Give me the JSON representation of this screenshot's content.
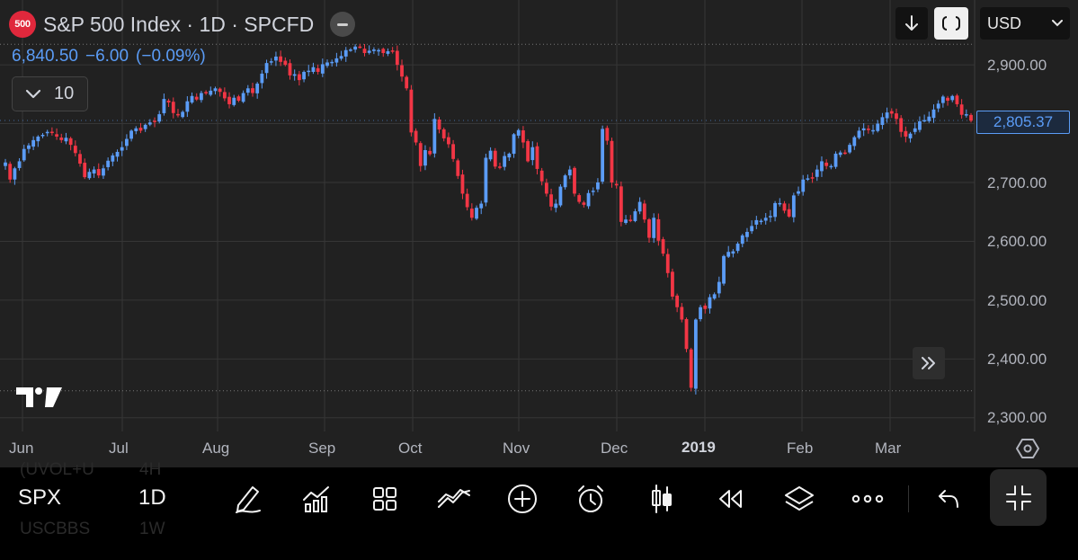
{
  "header": {
    "logo_text": "500",
    "title": "S&P 500 Index · 1D · SPCFD",
    "last_price": "6,840.50",
    "change": "−6.00",
    "change_pct": "(−0.09%)",
    "indicators_count": "10"
  },
  "toolbar": {
    "currency": "USD",
    "scale_icon": "down-arrow-icon",
    "fit_icon": "fit-screen-icon"
  },
  "price_axis": {
    "labels": [
      "2,900.00",
      "2,800.00",
      "2,700.00",
      "2,600.00",
      "2,500.00",
      "2,400.00",
      "2,300.00"
    ],
    "current_price": "2,805.37"
  },
  "time_axis": {
    "labels": [
      "Jun",
      "Jul",
      "Aug",
      "Sep",
      "Oct",
      "Nov",
      "Dec",
      "2019",
      "Feb",
      "Mar"
    ]
  },
  "chart_data": {
    "type": "candlestick",
    "up_color": "#5b9cf6",
    "down_color": "#f23645",
    "ylim": [
      2290,
      2950
    ],
    "high_marker": 2935,
    "low_marker": 2346,
    "last_close": 2805.37,
    "grid": true,
    "closes": [
      2734,
      2705,
      2724,
      2736,
      2757,
      2763,
      2772,
      2778,
      2781,
      2786,
      2784,
      2778,
      2772,
      2776,
      2764,
      2750,
      2732,
      2709,
      2718,
      2722,
      2712,
      2724,
      2737,
      2746,
      2752,
      2760,
      2774,
      2788,
      2792,
      2788,
      2798,
      2802,
      2803,
      2816,
      2842,
      2836,
      2818,
      2814,
      2820,
      2838,
      2847,
      2841,
      2852,
      2852,
      2856,
      2860,
      2854,
      2843,
      2833,
      2844,
      2839,
      2852,
      2860,
      2852,
      2868,
      2885,
      2903,
      2906,
      2914,
      2905,
      2900,
      2882,
      2884,
      2874,
      2888,
      2890,
      2896,
      2888,
      2901,
      2904,
      2905,
      2911,
      2915,
      2925,
      2926,
      2931,
      2930,
      2920,
      2924,
      2926,
      2925,
      2920,
      2923,
      2923,
      2900,
      2880,
      2860,
      2785,
      2768,
      2728,
      2755,
      2748,
      2808,
      2790,
      2775,
      2765,
      2740,
      2711,
      2681,
      2658,
      2640,
      2657,
      2664,
      2742,
      2754,
      2727,
      2726,
      2745,
      2749,
      2782,
      2789,
      2768,
      2736,
      2760,
      2723,
      2702,
      2681,
      2659,
      2664,
      2693,
      2712,
      2722,
      2681,
      2667,
      2662,
      2682,
      2686,
      2700,
      2791,
      2771,
      2700,
      2695,
      2633,
      2637,
      2635,
      2651,
      2667,
      2637,
      2606,
      2640,
      2601,
      2579,
      2546,
      2506,
      2488,
      2467,
      2417,
      2351,
      2467,
      2488,
      2485,
      2505,
      2510,
      2531,
      2575,
      2582,
      2583,
      2596,
      2610,
      2616,
      2626,
      2636,
      2635,
      2640,
      2643,
      2665,
      2665,
      2652,
      2642,
      2678,
      2685,
      2705,
      2707,
      2708,
      2722,
      2736,
      2728,
      2728,
      2749,
      2751,
      2750,
      2764,
      2777,
      2788,
      2792,
      2790,
      2789,
      2800,
      2811,
      2819,
      2817,
      2808,
      2786,
      2778,
      2783,
      2792,
      2804,
      2806,
      2812,
      2824,
      2834,
      2846,
      2839,
      2847,
      2833,
      2815,
      2816,
      2805
    ]
  },
  "bottom_bar": {
    "symbol": "SPX",
    "interval": "1D",
    "ghost_rows": [
      {
        "symbol": "(UVOL+U",
        "interval": "4H"
      },
      {
        "symbol": "USCBBS",
        "interval": "1W"
      }
    ],
    "icons": [
      "pencil-draw-icon",
      "indicators-icon",
      "templates-icon",
      "compare-icon",
      "add-icon",
      "alert-clock-icon",
      "candle-type-icon",
      "replay-icon",
      "layers-icon",
      "more-icon",
      "undo-icon",
      "minimize-icon"
    ]
  }
}
